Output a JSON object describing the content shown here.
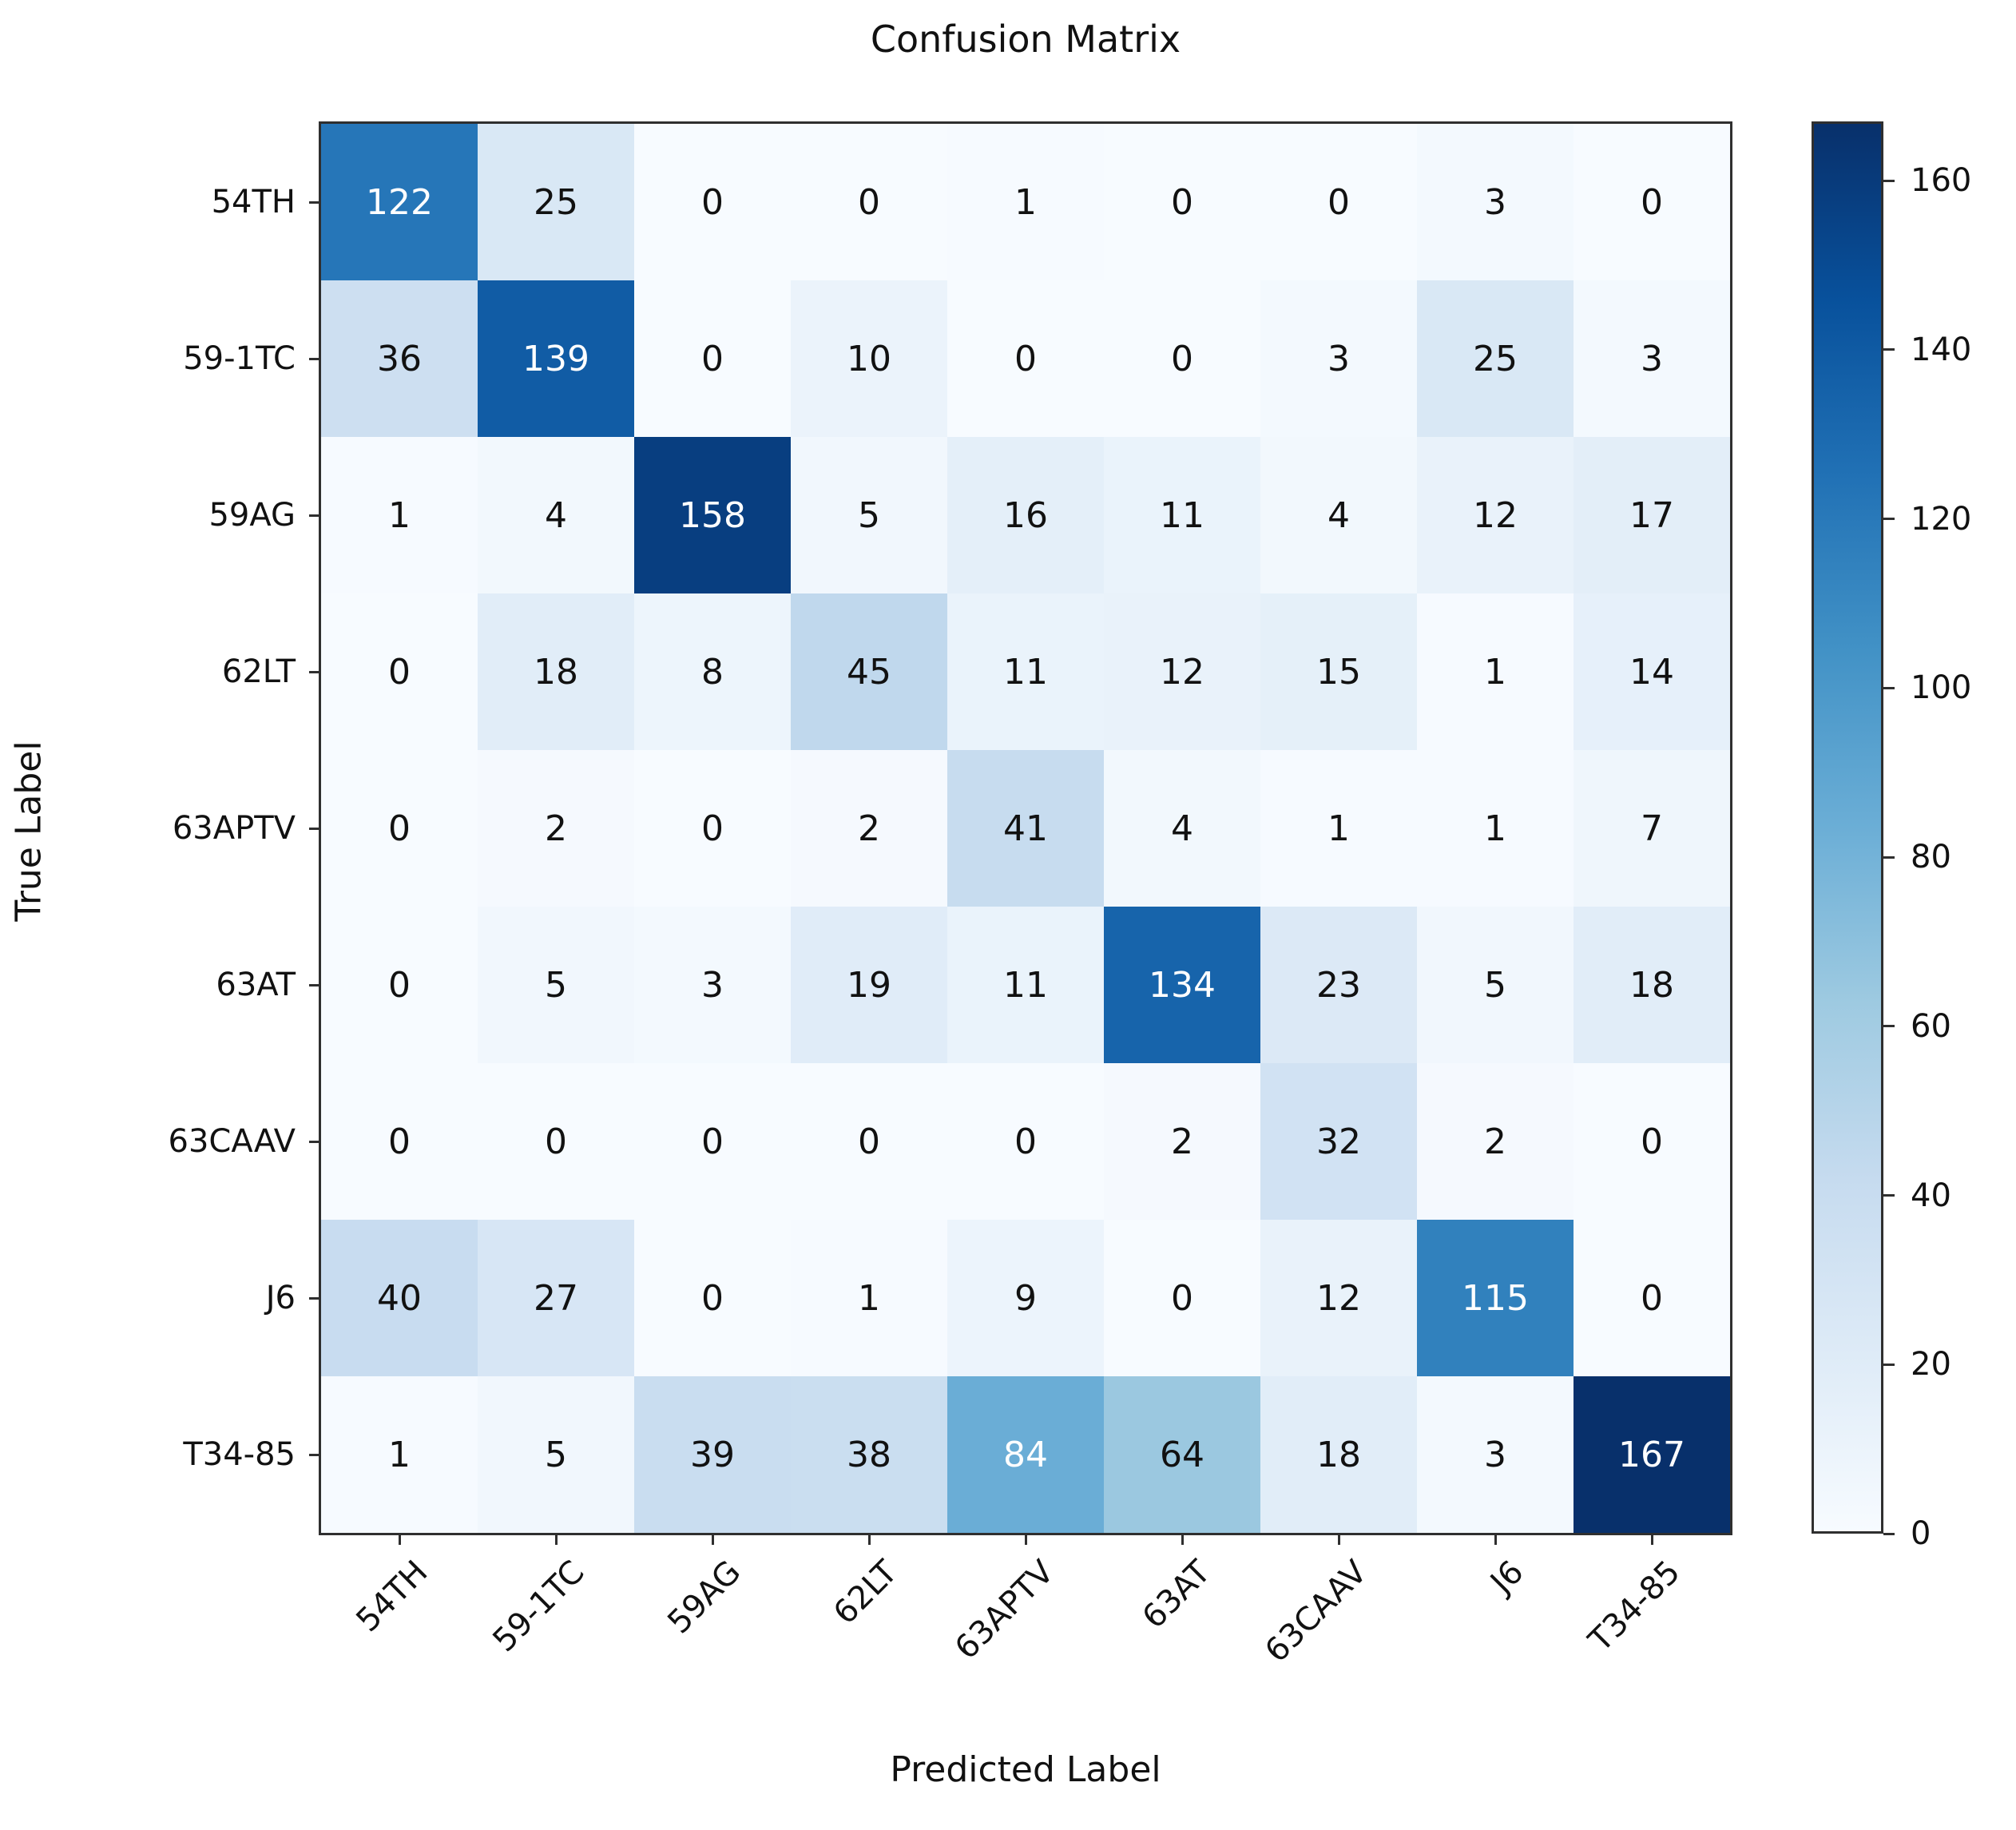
{
  "chart_data": {
    "type": "heatmap",
    "title": "Confusion Matrix",
    "xlabel": "Predicted Label",
    "ylabel": "True Label",
    "categories": [
      "54TH",
      "59-1TC",
      "59AG",
      "62LT",
      "63APTV",
      "63AT",
      "63CAAV",
      "J6",
      "T34-85"
    ],
    "rows": [
      [
        122,
        25,
        0,
        0,
        1,
        0,
        0,
        3,
        0
      ],
      [
        36,
        139,
        0,
        10,
        0,
        0,
        3,
        25,
        3
      ],
      [
        1,
        4,
        158,
        5,
        16,
        11,
        4,
        12,
        17
      ],
      [
        0,
        18,
        8,
        45,
        11,
        12,
        15,
        1,
        14
      ],
      [
        0,
        2,
        0,
        2,
        41,
        4,
        1,
        1,
        7
      ],
      [
        0,
        5,
        3,
        19,
        11,
        134,
        23,
        5,
        18
      ],
      [
        0,
        0,
        0,
        0,
        0,
        2,
        32,
        2,
        0
      ],
      [
        40,
        27,
        0,
        1,
        9,
        0,
        12,
        115,
        0
      ],
      [
        1,
        5,
        39,
        38,
        84,
        64,
        18,
        3,
        167
      ]
    ],
    "vmin": 0,
    "vmax": 167,
    "colormap": "Blues",
    "colormap_stops": [
      "#f7fbff",
      "#deebf7",
      "#c6dbef",
      "#9ecae1",
      "#6baed6",
      "#4292c6",
      "#2171b5",
      "#08519c",
      "#08306b"
    ],
    "cell_text_dark": "#111111",
    "cell_text_light": "#ffffff",
    "colorbar_ticks": [
      0,
      20,
      40,
      60,
      80,
      100,
      120,
      140,
      160
    ],
    "legend_position": "right",
    "grid": false
  }
}
